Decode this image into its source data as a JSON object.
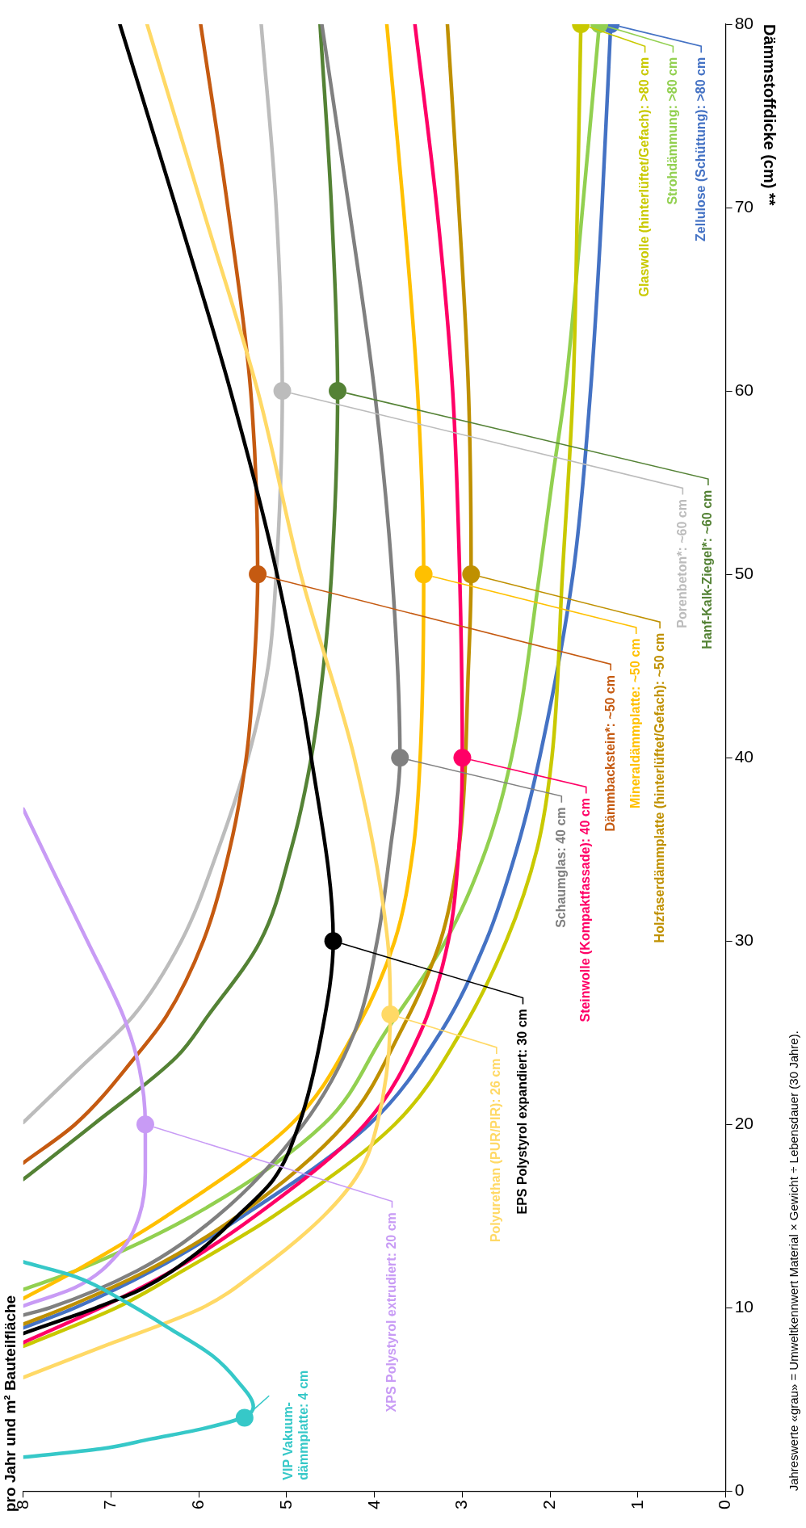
{
  "chart_data": {
    "type": "line",
    "title": "pro Jahr und m² Bauteilfläche",
    "ylabel": "Dämmstoffdicke (cm) **",
    "xlim": [
      8,
      0
    ],
    "xticks": [
      8,
      7,
      6,
      5,
      4,
      3,
      2,
      1,
      0
    ],
    "ylim": [
      0,
      80
    ],
    "yticks": [
      0,
      10,
      20,
      30,
      40,
      50,
      60,
      70,
      80
    ],
    "grid": false,
    "legend": false,
    "marker": "none",
    "line_style": "solid",
    "annotations": [
      "Jahreswerte «grau» = Umweltkennwert Material × Gewicht ÷ Lebensdauer (30 Jahre)."
    ],
    "series": [
      {
        "name": "VIP Vakuum-dämmplatte: 4 cm",
        "color": "#36c8c8",
        "values": [
          1.85,
          2.3,
          2.85,
          3.4,
          4.05,
          4.6,
          6,
          7.4,
          8.8,
          10.3,
          11.7,
          12.5
        ],
        "x": [
          8,
          7.12,
          6.54,
          5.96,
          5.48,
          5.38,
          5.56,
          5.85,
          6.31,
          6.83,
          7.41,
          8
        ]
      },
      {
        "name": "XPS Polystyrol extrudiert: 20 cm",
        "color": "#c89bf5",
        "values": [
          10.1,
          11.1,
          13.1,
          15,
          17.4,
          20,
          23.1,
          25.9,
          29.9,
          34.2,
          37.2
        ],
        "x": [
          8,
          7.41,
          6.89,
          6.68,
          6.61,
          6.61,
          6.68,
          6.86,
          7.26,
          7.7,
          8
        ]
      },
      {
        "name": "Polyurethan (PUR/PIR): 26 cm",
        "color": "#ffd966",
        "values": [
          6.2,
          8,
          10,
          12,
          15,
          17.4,
          20,
          26,
          30,
          40,
          50,
          60,
          70,
          80
        ],
        "x": [
          8,
          7.03,
          5.96,
          5.33,
          4.58,
          4.17,
          3.97,
          3.82,
          3.85,
          4.23,
          4.84,
          5.33,
          5.96,
          6.59
        ]
      },
      {
        "name": "EPS Polystyrol expandiert: 30 cm",
        "color": "#000000",
        "values": [
          8.6,
          9.5,
          10,
          11,
          13,
          15,
          17,
          20,
          25,
          30,
          40,
          50,
          60,
          70,
          80
        ],
        "x": [
          8,
          7.46,
          7.17,
          6.66,
          6.02,
          5.56,
          5.15,
          4.86,
          4.6,
          4.47,
          4.72,
          5.11,
          5.64,
          6.26,
          6.9
        ]
      },
      {
        "name": "Schaumglas: 40 cm",
        "color": "#808080",
        "values": [
          9.6,
          10,
          12,
          15,
          20,
          25,
          30,
          35,
          40,
          50,
          60,
          70,
          80
        ],
        "x": [
          8,
          7.7,
          6.71,
          5.79,
          4.81,
          4.23,
          3.97,
          3.82,
          3.71,
          3.8,
          4,
          4.29,
          4.6
        ]
      },
      {
        "name": "Steinwolle (Kompaktfassade): 40 cm",
        "color": "#ff0066",
        "values": [
          8.1,
          10,
          12,
          15,
          20,
          25,
          30,
          35,
          40,
          50,
          60,
          70,
          80
        ],
        "x": [
          8,
          7.12,
          6.31,
          5.36,
          4.11,
          3.48,
          3.16,
          3.04,
          3,
          3.03,
          3.11,
          3.29,
          3.54
        ]
      },
      {
        "name": "Dämmbackstein*: ~50 cm",
        "color": "#c55a11",
        "values": [
          17.9,
          20,
          23.7,
          25.9,
          30,
          35,
          40,
          45,
          50,
          60,
          70,
          80
        ],
        "x": [
          8,
          7.41,
          6.72,
          6.37,
          5.95,
          5.65,
          5.46,
          5.37,
          5.33,
          5.41,
          5.67,
          5.98
        ]
      },
      {
        "name": "Mineraldämmplatte: ~50 cm",
        "color": "#ffc000",
        "values": [
          10.5,
          12,
          15,
          20,
          25,
          30,
          35,
          40,
          50,
          60,
          70,
          80
        ],
        "x": [
          8,
          7.41,
          6.37,
          4.95,
          4.23,
          3.77,
          3.56,
          3.48,
          3.44,
          3.51,
          3.67,
          3.86
        ]
      },
      {
        "name": "Holzfaserdämmplatte (hinterlüftet/Gefach): ~50 cm",
        "color": "#bf9000",
        "values": [
          9.1,
          10,
          12,
          15,
          20,
          25,
          30,
          35,
          45,
          50,
          60,
          70,
          80
        ],
        "x": [
          8,
          7.52,
          6.6,
          5.56,
          4.34,
          3.71,
          3.25,
          3.04,
          2.93,
          2.9,
          2.93,
          3.04,
          3.17
        ]
      },
      {
        "name": "Porenbeton*: ~60 cm",
        "color": "#bcbcbc",
        "values": [
          20.1,
          23.1,
          25.9,
          30,
          35,
          40,
          45,
          50,
          60,
          70,
          80
        ],
        "x": [
          8,
          7.35,
          6.75,
          6.2,
          5.78,
          5.44,
          5.21,
          5.12,
          5.05,
          5.12,
          5.29
        ]
      },
      {
        "name": "Hanf-Kalk-Ziegel*: ~60 cm",
        "color": "#548235",
        "values": [
          17,
          20,
          23.7,
          25.9,
          30,
          35,
          40,
          45,
          50,
          60,
          70,
          80
        ],
        "x": [
          8,
          7.2,
          6.25,
          5.9,
          5.3,
          4.95,
          4.72,
          4.58,
          4.49,
          4.42,
          4.49,
          4.62
        ]
      },
      {
        "name": "Glaswolle (hinterlüftet/Gefach): >80 cm",
        "color": "#c9c900",
        "values": [
          7.9,
          10,
          12,
          15,
          20,
          25,
          30,
          35,
          40,
          50,
          60,
          70,
          80
        ],
        "x": [
          8,
          6.94,
          6.19,
          5.15,
          3.77,
          3.02,
          2.5,
          2.15,
          1.98,
          1.86,
          1.74,
          1.69,
          1.65
        ]
      },
      {
        "name": "Strohdämmung: >80 cm",
        "color": "#92d050",
        "values": [
          11,
          12,
          15,
          20,
          25,
          30,
          35,
          40,
          50,
          55,
          60,
          70,
          80
        ],
        "x": [
          8,
          7.41,
          6.08,
          4.58,
          3.88,
          3.19,
          2.73,
          2.44,
          2.12,
          1.98,
          1.83,
          1.63,
          1.44
        ]
      },
      {
        "name": "Zellulose (Schüttung): >80 cm",
        "color": "#4472c4",
        "values": [
          8.9,
          10,
          12,
          15,
          20,
          25,
          30,
          35,
          40,
          50,
          60,
          70,
          80
        ],
        "x": [
          8,
          7.41,
          6.54,
          5.5,
          4.06,
          3.25,
          2.73,
          2.38,
          2.12,
          1.74,
          1.54,
          1.41,
          1.31
        ]
      },
      {
        "type": "scatter",
        "marker": "circle",
        "color": "#36c8c8",
        "values": [
          4
        ],
        "x": [
          5.48
        ]
      },
      {
        "type": "scatter",
        "marker": "circle",
        "color": "#c89bf5",
        "values": [
          20
        ],
        "x": [
          6.61
        ]
      },
      {
        "type": "scatter",
        "marker": "circle",
        "color": "#ffd966",
        "values": [
          26
        ],
        "x": [
          3.82
        ]
      },
      {
        "type": "scatter",
        "marker": "circle",
        "color": "#000000",
        "values": [
          30
        ],
        "x": [
          4.47
        ]
      },
      {
        "type": "scatter",
        "marker": "circle",
        "color": "#808080",
        "values": [
          40
        ],
        "x": [
          3.71
        ]
      },
      {
        "type": "scatter",
        "marker": "circle",
        "color": "#ff0066",
        "values": [
          40
        ],
        "x": [
          3
        ]
      },
      {
        "type": "scatter",
        "marker": "circle",
        "color": "#c55a11",
        "values": [
          50
        ],
        "x": [
          5.33
        ]
      },
      {
        "type": "scatter",
        "marker": "circle",
        "color": "#ffc000",
        "values": [
          50
        ],
        "x": [
          3.44
        ]
      },
      {
        "type": "scatter",
        "marker": "circle",
        "color": "#bf9000",
        "values": [
          50
        ],
        "x": [
          2.9
        ]
      },
      {
        "type": "scatter",
        "marker": "circle",
        "color": "#bcbcbc",
        "values": [
          60
        ],
        "x": [
          5.05
        ]
      },
      {
        "type": "scatter",
        "marker": "circle",
        "color": "#548235",
        "values": [
          60
        ],
        "x": [
          4.42
        ]
      },
      {
        "type": "scatter",
        "marker": "circle",
        "color": "#c9c900",
        "values": [
          80
        ],
        "x": [
          1.65
        ]
      },
      {
        "type": "scatter",
        "marker": "circle",
        "color": "#92d050",
        "values": [
          80
        ],
        "x": [
          1.44
        ]
      },
      {
        "type": "scatter",
        "marker": "circle",
        "color": "#4472c4",
        "values": [
          80
        ],
        "x": [
          1.31
        ]
      }
    ]
  }
}
